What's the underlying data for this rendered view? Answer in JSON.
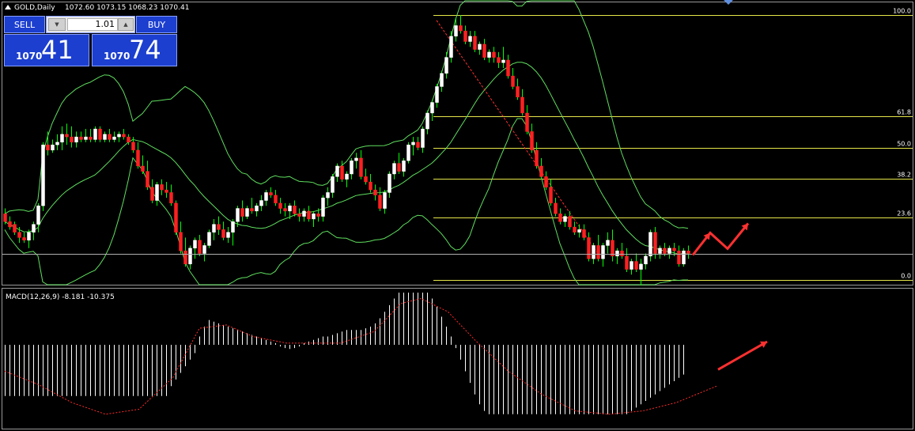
{
  "header": {
    "symbol_label": "GOLD,Daily",
    "ohlc_label": "1072.60 1073.15 1068.23 1070.41"
  },
  "trade_panel": {
    "sell_label": "SELL",
    "buy_label": "BUY",
    "lot_value": "1.01",
    "sell_price_prefix": "1070",
    "sell_price_main": "41",
    "buy_price_prefix": "1070",
    "buy_price_main": "74"
  },
  "colors": {
    "background": "#000000",
    "bull": "#ffffff",
    "bear": "#ff2020",
    "wick": "#00ff00",
    "bollinger": "#5fdf5f",
    "fibonacci": "#e6e64a",
    "trend": "#ff3030",
    "annotation_arrow": "#ff3030",
    "macd_hist": "#ffffff",
    "macd_signal": "#ff2a2a"
  },
  "chart_data": [
    {
      "type": "candlestick",
      "x_count": 150,
      "y_range": [
        1.0,
        0.0
      ],
      "bars": [
        [
          0.25,
          0.27,
          0.21,
          0.22
        ],
        [
          0.22,
          0.24,
          0.19,
          0.2
        ],
        [
          0.21,
          0.22,
          0.17,
          0.18
        ],
        [
          0.18,
          0.2,
          0.14,
          0.16
        ],
        [
          0.16,
          0.18,
          0.14,
          0.15
        ],
        [
          0.15,
          0.19,
          0.12,
          0.18
        ],
        [
          0.18,
          0.22,
          0.15,
          0.21
        ],
        [
          0.21,
          0.29,
          0.18,
          0.28
        ],
        [
          0.28,
          0.52,
          0.26,
          0.51
        ],
        [
          0.51,
          0.56,
          0.47,
          0.49
        ],
        [
          0.49,
          0.53,
          0.48,
          0.51
        ],
        [
          0.51,
          0.55,
          0.49,
          0.52
        ],
        [
          0.52,
          0.58,
          0.49,
          0.55
        ],
        [
          0.55,
          0.59,
          0.51,
          0.54
        ],
        [
          0.54,
          0.58,
          0.5,
          0.52
        ],
        [
          0.52,
          0.56,
          0.5,
          0.54
        ],
        [
          0.54,
          0.56,
          0.52,
          0.53
        ],
        [
          0.53,
          0.57,
          0.52,
          0.54
        ],
        [
          0.54,
          0.57,
          0.52,
          0.53
        ],
        [
          0.53,
          0.58,
          0.52,
          0.57
        ],
        [
          0.57,
          0.58,
          0.52,
          0.53
        ],
        [
          0.53,
          0.56,
          0.52,
          0.55
        ],
        [
          0.55,
          0.57,
          0.52,
          0.53
        ],
        [
          0.53,
          0.56,
          0.52,
          0.54
        ],
        [
          0.54,
          0.56,
          0.52,
          0.55
        ],
        [
          0.55,
          0.57,
          0.53,
          0.54
        ],
        [
          0.54,
          0.55,
          0.51,
          0.52
        ],
        [
          0.52,
          0.54,
          0.48,
          0.49
        ],
        [
          0.49,
          0.52,
          0.42,
          0.43
        ],
        [
          0.43,
          0.47,
          0.4,
          0.41
        ],
        [
          0.41,
          0.45,
          0.34,
          0.35
        ],
        [
          0.35,
          0.38,
          0.29,
          0.3
        ],
        [
          0.3,
          0.37,
          0.28,
          0.36
        ],
        [
          0.36,
          0.38,
          0.32,
          0.34
        ],
        [
          0.34,
          0.37,
          0.31,
          0.33
        ],
        [
          0.33,
          0.36,
          0.28,
          0.29
        ],
        [
          0.29,
          0.3,
          0.17,
          0.18
        ],
        [
          0.18,
          0.22,
          0.1,
          0.11
        ],
        [
          0.11,
          0.16,
          0.05,
          0.06
        ],
        [
          0.06,
          0.13,
          0.04,
          0.12
        ],
        [
          0.12,
          0.16,
          0.08,
          0.15
        ],
        [
          0.15,
          0.17,
          0.09,
          0.1
        ],
        [
          0.1,
          0.14,
          0.07,
          0.13
        ],
        [
          0.13,
          0.19,
          0.12,
          0.18
        ],
        [
          0.18,
          0.23,
          0.15,
          0.21
        ],
        [
          0.21,
          0.24,
          0.17,
          0.19
        ],
        [
          0.19,
          0.22,
          0.15,
          0.16
        ],
        [
          0.16,
          0.2,
          0.14,
          0.18
        ],
        [
          0.18,
          0.23,
          0.13,
          0.22
        ],
        [
          0.22,
          0.28,
          0.2,
          0.27
        ],
        [
          0.27,
          0.3,
          0.22,
          0.24
        ],
        [
          0.24,
          0.28,
          0.23,
          0.27
        ],
        [
          0.27,
          0.31,
          0.25,
          0.26
        ],
        [
          0.26,
          0.29,
          0.24,
          0.28
        ],
        [
          0.28,
          0.32,
          0.26,
          0.3
        ],
        [
          0.3,
          0.34,
          0.28,
          0.33
        ],
        [
          0.33,
          0.35,
          0.31,
          0.32
        ],
        [
          0.32,
          0.34,
          0.28,
          0.29
        ],
        [
          0.29,
          0.31,
          0.25,
          0.27
        ],
        [
          0.27,
          0.29,
          0.24,
          0.26
        ],
        [
          0.26,
          0.29,
          0.23,
          0.28
        ],
        [
          0.28,
          0.3,
          0.24,
          0.25
        ],
        [
          0.25,
          0.27,
          0.22,
          0.24
        ],
        [
          0.24,
          0.27,
          0.22,
          0.26
        ],
        [
          0.26,
          0.28,
          0.22,
          0.23
        ],
        [
          0.23,
          0.26,
          0.2,
          0.25
        ],
        [
          0.25,
          0.27,
          0.22,
          0.24
        ],
        [
          0.24,
          0.32,
          0.22,
          0.31
        ],
        [
          0.31,
          0.35,
          0.28,
          0.33
        ],
        [
          0.33,
          0.4,
          0.31,
          0.39
        ],
        [
          0.39,
          0.44,
          0.37,
          0.43
        ],
        [
          0.43,
          0.45,
          0.37,
          0.38
        ],
        [
          0.38,
          0.41,
          0.35,
          0.4
        ],
        [
          0.4,
          0.46,
          0.38,
          0.45
        ],
        [
          0.45,
          0.48,
          0.42,
          0.46
        ],
        [
          0.46,
          0.49,
          0.38,
          0.39
        ],
        [
          0.39,
          0.42,
          0.36,
          0.37
        ],
        [
          0.37,
          0.4,
          0.33,
          0.34
        ],
        [
          0.34,
          0.36,
          0.3,
          0.32
        ],
        [
          0.32,
          0.35,
          0.26,
          0.27
        ],
        [
          0.27,
          0.34,
          0.25,
          0.33
        ],
        [
          0.33,
          0.41,
          0.31,
          0.4
        ],
        [
          0.4,
          0.45,
          0.38,
          0.44
        ],
        [
          0.44,
          0.48,
          0.4,
          0.41
        ],
        [
          0.41,
          0.46,
          0.39,
          0.45
        ],
        [
          0.45,
          0.52,
          0.44,
          0.51
        ],
        [
          0.51,
          0.54,
          0.47,
          0.52
        ],
        [
          0.52,
          0.54,
          0.49,
          0.5
        ],
        [
          0.5,
          0.58,
          0.48,
          0.57
        ],
        [
          0.57,
          0.64,
          0.55,
          0.63
        ],
        [
          0.63,
          0.68,
          0.6,
          0.67
        ],
        [
          0.67,
          0.74,
          0.65,
          0.73
        ],
        [
          0.73,
          0.79,
          0.71,
          0.78
        ],
        [
          0.78,
          0.86,
          0.76,
          0.84
        ],
        [
          0.84,
          0.94,
          0.82,
          0.92
        ],
        [
          0.92,
          0.99,
          0.9,
          0.96
        ],
        [
          0.96,
          1.0,
          0.93,
          0.94
        ],
        [
          0.94,
          0.96,
          0.89,
          0.9
        ],
        [
          0.9,
          0.94,
          0.88,
          0.92
        ],
        [
          0.92,
          0.94,
          0.86,
          0.87
        ],
        [
          0.87,
          0.9,
          0.85,
          0.89
        ],
        [
          0.89,
          0.91,
          0.83,
          0.84
        ],
        [
          0.84,
          0.87,
          0.82,
          0.86
        ],
        [
          0.86,
          0.88,
          0.82,
          0.84
        ],
        [
          0.84,
          0.86,
          0.8,
          0.82
        ],
        [
          0.82,
          0.88,
          0.8,
          0.83
        ],
        [
          0.83,
          0.85,
          0.76,
          0.77
        ],
        [
          0.77,
          0.8,
          0.72,
          0.73
        ],
        [
          0.73,
          0.76,
          0.68,
          0.69
        ],
        [
          0.69,
          0.72,
          0.62,
          0.63
        ],
        [
          0.63,
          0.66,
          0.55,
          0.56
        ],
        [
          0.56,
          0.59,
          0.48,
          0.49
        ],
        [
          0.49,
          0.52,
          0.42,
          0.43
        ],
        [
          0.43,
          0.46,
          0.38,
          0.39
        ],
        [
          0.39,
          0.41,
          0.34,
          0.35
        ],
        [
          0.35,
          0.38,
          0.28,
          0.29
        ],
        [
          0.29,
          0.31,
          0.24,
          0.25
        ],
        [
          0.25,
          0.27,
          0.21,
          0.22
        ],
        [
          0.22,
          0.25,
          0.2,
          0.24
        ],
        [
          0.24,
          0.26,
          0.19,
          0.2
        ],
        [
          0.2,
          0.22,
          0.17,
          0.18
        ],
        [
          0.18,
          0.21,
          0.16,
          0.19
        ],
        [
          0.19,
          0.21,
          0.15,
          0.16
        ],
        [
          0.16,
          0.18,
          0.07,
          0.08
        ],
        [
          0.08,
          0.14,
          0.06,
          0.13
        ],
        [
          0.13,
          0.17,
          0.07,
          0.08
        ],
        [
          0.08,
          0.14,
          0.05,
          0.13
        ],
        [
          0.13,
          0.18,
          0.1,
          0.15
        ],
        [
          0.15,
          0.19,
          0.07,
          0.09
        ],
        [
          0.09,
          0.12,
          0.06,
          0.11
        ],
        [
          0.11,
          0.14,
          0.08,
          0.09
        ],
        [
          0.09,
          0.12,
          0.03,
          0.04
        ],
        [
          0.04,
          0.08,
          0.02,
          0.07
        ],
        [
          0.07,
          0.1,
          0.03,
          0.04
        ],
        [
          0.04,
          0.08,
          -0.02,
          0.06
        ],
        [
          0.06,
          0.1,
          0.04,
          0.09
        ],
        [
          0.09,
          0.19,
          0.07,
          0.18
        ],
        [
          0.18,
          0.2,
          0.08,
          0.1
        ],
        [
          0.1,
          0.13,
          0.08,
          0.12
        ],
        [
          0.12,
          0.14,
          0.09,
          0.1
        ],
        [
          0.1,
          0.13,
          0.08,
          0.12
        ],
        [
          0.12,
          0.14,
          0.09,
          0.11
        ],
        [
          0.11,
          0.13,
          0.05,
          0.06
        ],
        [
          0.06,
          0.12,
          0.05,
          0.11
        ],
        [
          0.11,
          0.13,
          0.08,
          0.1
        ]
      ]
    },
    {
      "type": "fibonacci",
      "levels": [
        {
          "label": "100.0",
          "value": 1.0
        },
        {
          "label": "61.8",
          "value": 0.618
        },
        {
          "label": "50.0",
          "value": 0.5
        },
        {
          "label": "38.2",
          "value": 0.382
        },
        {
          "label": "23.6",
          "value": 0.236
        },
        {
          "label": "0.0",
          "value": 0.0
        }
      ]
    },
    {
      "type": "bar",
      "title": "MACD(12,26,9) -8.181 -10.375",
      "histogram": [
        -0.62,
        -0.62,
        -0.62,
        -0.62,
        -0.62,
        -0.62,
        -0.62,
        -0.62,
        -0.62,
        -0.62,
        -0.62,
        -0.62,
        -0.62,
        -0.62,
        -0.62,
        -0.62,
        -0.62,
        -0.62,
        -0.62,
        -0.62,
        -0.62,
        -0.62,
        -0.62,
        -0.62,
        -0.62,
        -0.62,
        -0.62,
        -0.62,
        -0.62,
        -0.62,
        -0.62,
        -0.62,
        -0.62,
        -0.62,
        -0.62,
        -0.5,
        -0.42,
        -0.34,
        -0.26,
        -0.18,
        -0.1,
        0.1,
        0.22,
        0.3,
        0.28,
        0.26,
        0.24,
        0.22,
        0.2,
        0.18,
        0.16,
        0.14,
        0.12,
        0.1,
        0.08,
        0.06,
        0.04,
        0.02,
        -0.02,
        -0.04,
        -0.05,
        -0.04,
        -0.02,
        0.02,
        0.04,
        0.06,
        0.08,
        0.1,
        0.1,
        0.12,
        0.14,
        0.16,
        0.18,
        0.18,
        0.18,
        0.18,
        0.2,
        0.22,
        0.26,
        0.32,
        0.4,
        0.48,
        0.56,
        0.64,
        0.7,
        0.74,
        0.74,
        0.72,
        0.7,
        0.64,
        0.56,
        0.46,
        0.34,
        0.22,
        0.1,
        -0.04,
        -0.18,
        -0.32,
        -0.46,
        -0.6,
        -0.72,
        -0.8,
        -0.84,
        -0.84,
        -0.84,
        -0.84,
        -0.84,
        -0.84,
        -0.84,
        -0.84,
        -0.84,
        -0.84,
        -0.84,
        -0.84,
        -0.84,
        -0.84,
        -0.84,
        -0.84,
        -0.84,
        -0.84,
        -0.84,
        -0.84,
        -0.84,
        -0.84,
        -0.84,
        -0.84,
        -0.84,
        -0.84,
        -0.84,
        -0.84,
        -0.84,
        -0.84,
        -0.8,
        -0.76,
        -0.72,
        -0.68,
        -0.64,
        -0.6,
        -0.56,
        -0.52,
        -0.48,
        -0.44,
        -0.4,
        -0.36
      ],
      "signal": [
        [
          0,
          -0.32
        ],
        [
          10,
          -0.48
        ],
        [
          20,
          -0.7
        ],
        [
          30,
          -0.84
        ],
        [
          40,
          -0.78
        ],
        [
          50,
          -0.4
        ],
        [
          58,
          0.2
        ],
        [
          66,
          0.24
        ],
        [
          74,
          0.1
        ],
        [
          84,
          0.02
        ],
        [
          100,
          0.02
        ],
        [
          110,
          0.16
        ],
        [
          118,
          0.5
        ],
        [
          124,
          0.56
        ],
        [
          132,
          0.4
        ],
        [
          140,
          0.06
        ],
        [
          150,
          -0.32
        ],
        [
          160,
          -0.6
        ],
        [
          170,
          -0.8
        ],
        [
          180,
          -0.84
        ],
        [
          190,
          -0.8
        ],
        [
          200,
          -0.7
        ],
        [
          212,
          -0.5
        ]
      ]
    }
  ]
}
